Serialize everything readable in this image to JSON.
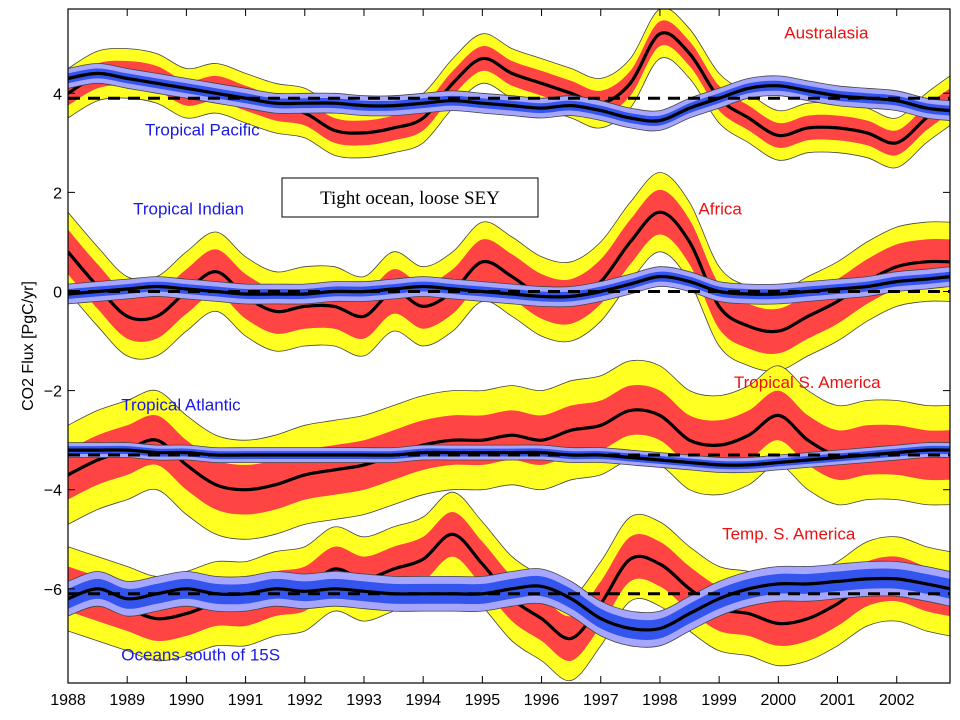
{
  "chart_data": {
    "type": "line",
    "title": "",
    "xlabel": "",
    "ylabel": "CO2 Flux [PgC/yr]",
    "xlim": [
      1988,
      2002.9
    ],
    "ylim": [
      -7.9,
      5.7
    ],
    "grid": false,
    "x_ticks": [
      "1988",
      "1989",
      "1990",
      "1991",
      "1992",
      "1993",
      "1994",
      "1995",
      "1996",
      "1997",
      "1998",
      "1999",
      "2000",
      "2001",
      "2002"
    ],
    "y_ticks": [
      "−6",
      "−4",
      "−2",
      "0",
      "2",
      "4"
    ],
    "colors": {
      "land_inner_band": "#ff4444",
      "land_outer_band": "#ffff22",
      "ocean_inner_band": "#3355ee",
      "ocean_outer_band": "#a6a6ff",
      "mean_line": "#000000",
      "land_label": "#ee1111",
      "ocean_label": "#1a1ae6"
    },
    "annotation": "Tight ocean, loose SEY",
    "series": [
      {
        "name": "Australasia",
        "group": "land",
        "x": [
          1988,
          1988.5,
          1989,
          1989.5,
          1990,
          1990.5,
          1991,
          1991.5,
          1992,
          1992.5,
          1993,
          1993.5,
          1994,
          1994.5,
          1995,
          1995.5,
          1996,
          1996.5,
          1997,
          1997.5,
          1998,
          1998.5,
          1999,
          1999.5,
          2000,
          2000.5,
          2001,
          2001.5,
          2002,
          2002.5,
          2002.9
        ],
        "values": [
          4.0,
          4.35,
          4.4,
          4.3,
          4.0,
          4.1,
          3.9,
          3.7,
          3.6,
          3.25,
          3.2,
          3.3,
          3.5,
          4.2,
          4.7,
          4.4,
          4.2,
          4.0,
          3.8,
          4.2,
          5.2,
          4.8,
          3.9,
          3.5,
          3.15,
          3.3,
          3.3,
          3.2,
          3.0,
          3.5,
          3.85
        ],
        "band_inner": 0.25,
        "band_outer": 0.5
      },
      {
        "name": "Tropical Pacific",
        "group": "ocean",
        "x": [
          1988,
          1988.5,
          1989,
          1989.5,
          1990,
          1990.5,
          1991,
          1991.5,
          1992,
          1992.5,
          1993,
          1993.5,
          1994,
          1994.5,
          1995,
          1995.5,
          1996,
          1996.5,
          1997,
          1997.5,
          1998,
          1998.5,
          1999,
          1999.5,
          2000,
          2000.5,
          2001,
          2001.5,
          2002,
          2002.5,
          2002.9
        ],
        "values": [
          4.3,
          4.4,
          4.3,
          4.2,
          4.1,
          4.0,
          3.9,
          3.8,
          3.8,
          3.8,
          3.75,
          3.75,
          3.8,
          3.85,
          3.8,
          3.75,
          3.7,
          3.75,
          3.65,
          3.5,
          3.45,
          3.7,
          3.9,
          4.1,
          4.15,
          4.05,
          3.95,
          3.9,
          3.85,
          3.7,
          3.65
        ],
        "band_inner": 0.1,
        "band_outer": 0.2,
        "mean": 3.9
      },
      {
        "name": "Africa",
        "group": "land",
        "x": [
          1988,
          1988.5,
          1989,
          1989.5,
          1990,
          1990.5,
          1991,
          1991.5,
          1992,
          1992.5,
          1993,
          1993.5,
          1994,
          1994.5,
          1995,
          1995.5,
          1996,
          1996.5,
          1997,
          1997.5,
          1998,
          1998.5,
          1999,
          1999.5,
          2000,
          2000.5,
          2001,
          2001.5,
          2002,
          2002.5,
          2002.9
        ],
        "values": [
          0.8,
          0.1,
          -0.5,
          -0.5,
          0.0,
          0.4,
          -0.1,
          -0.4,
          -0.3,
          -0.3,
          -0.5,
          0.0,
          -0.3,
          0.0,
          0.6,
          0.3,
          -0.1,
          -0.2,
          0.2,
          1.0,
          1.6,
          1.0,
          -0.3,
          -0.7,
          -0.8,
          -0.5,
          -0.2,
          0.2,
          0.5,
          0.6,
          0.6
        ],
        "band_inner": 0.45,
        "band_outer": 0.8
      },
      {
        "name": "Tropical Indian",
        "group": "ocean",
        "x": [
          1988,
          1988.5,
          1989,
          1989.5,
          1990,
          1990.5,
          1991,
          1991.5,
          1992,
          1992.5,
          1993,
          1993.5,
          1994,
          1994.5,
          1995,
          1995.5,
          1996,
          1996.5,
          1997,
          1997.5,
          1998,
          1998.5,
          1999,
          1999.5,
          2000,
          2000.5,
          2001,
          2001.5,
          2002,
          2002.5,
          2002.9
        ],
        "values": [
          -0.05,
          0.0,
          0.05,
          0.1,
          0.05,
          0.0,
          -0.05,
          -0.05,
          -0.05,
          0.0,
          0.0,
          0.05,
          0.1,
          0.05,
          0.0,
          -0.05,
          -0.1,
          -0.1,
          0.0,
          0.15,
          0.3,
          0.2,
          0.0,
          -0.05,
          -0.05,
          0.0,
          0.05,
          0.1,
          0.2,
          0.25,
          0.3
        ],
        "band_inner": 0.1,
        "band_outer": 0.2,
        "mean": 0.0
      },
      {
        "name": "Tropical S. America",
        "group": "land",
        "x": [
          1988,
          1988.5,
          1989,
          1989.5,
          1990,
          1990.5,
          1991,
          1991.5,
          1992,
          1992.5,
          1993,
          1993.5,
          1994,
          1994.5,
          1995,
          1995.5,
          1996,
          1996.5,
          1997,
          1997.5,
          1998,
          1998.5,
          1999,
          1999.5,
          2000,
          2000.5,
          2001,
          2001.5,
          2002,
          2002.5,
          2002.9
        ],
        "values": [
          -3.7,
          -3.4,
          -3.2,
          -3.0,
          -3.5,
          -3.9,
          -4.0,
          -3.9,
          -3.7,
          -3.6,
          -3.5,
          -3.3,
          -3.1,
          -3.0,
          -3.0,
          -2.9,
          -3.0,
          -2.8,
          -2.7,
          -2.4,
          -2.5,
          -3.0,
          -3.1,
          -2.9,
          -2.5,
          -3.0,
          -3.3,
          -3.2,
          -3.2,
          -3.3,
          -3.3
        ],
        "band_inner": 0.5,
        "band_outer": 1.0
      },
      {
        "name": "Tropical Atlantic",
        "group": "ocean",
        "x": [
          1988,
          1988.5,
          1989,
          1989.5,
          1990,
          1990.5,
          1991,
          1991.5,
          1992,
          1992.5,
          1993,
          1993.5,
          1994,
          1994.5,
          1995,
          1995.5,
          1996,
          1996.5,
          1997,
          1997.5,
          1998,
          1998.5,
          1999,
          1999.5,
          2000,
          2000.5,
          2001,
          2001.5,
          2002,
          2002.5,
          2002.9
        ],
        "values": [
          -3.2,
          -3.2,
          -3.2,
          -3.25,
          -3.25,
          -3.3,
          -3.3,
          -3.3,
          -3.3,
          -3.3,
          -3.3,
          -3.3,
          -3.25,
          -3.25,
          -3.25,
          -3.25,
          -3.25,
          -3.3,
          -3.3,
          -3.35,
          -3.4,
          -3.45,
          -3.5,
          -3.5,
          -3.45,
          -3.4,
          -3.35,
          -3.3,
          -3.25,
          -3.2,
          -3.2
        ],
        "band_inner": 0.08,
        "band_outer": 0.15,
        "mean": -3.3
      },
      {
        "name": "Temp. S. America",
        "group": "land",
        "x": [
          1988,
          1988.5,
          1989,
          1989.5,
          1990,
          1990.5,
          1991,
          1991.5,
          1992,
          1992.5,
          1993,
          1993.5,
          1994,
          1994.5,
          1995,
          1995.5,
          1996,
          1996.5,
          1997,
          1997.5,
          1998,
          1998.5,
          1999,
          1999.5,
          2000,
          2000.5,
          2001,
          2001.5,
          2002,
          2002.5,
          2002.9
        ],
        "values": [
          -6.0,
          -6.2,
          -6.4,
          -6.6,
          -6.5,
          -6.3,
          -6.3,
          -6.1,
          -6.0,
          -5.6,
          -5.8,
          -5.6,
          -5.4,
          -4.9,
          -5.5,
          -6.2,
          -6.6,
          -7.0,
          -6.3,
          -5.4,
          -5.5,
          -6.0,
          -6.4,
          -6.5,
          -6.7,
          -6.6,
          -6.3,
          -5.9,
          -5.8,
          -6.0,
          -6.1
        ],
        "band_inner": 0.45,
        "band_outer": 0.85
      },
      {
        "name": "Oceans south of 15S",
        "group": "ocean",
        "x": [
          1988,
          1988.5,
          1989,
          1989.5,
          1990,
          1990.5,
          1991,
          1991.5,
          1992,
          1992.5,
          1993,
          1993.5,
          1994,
          1994.5,
          1995,
          1995.5,
          1996,
          1996.5,
          1997,
          1997.5,
          1998,
          1998.5,
          1999,
          1999.5,
          2000,
          2000.5,
          2001,
          2001.5,
          2002,
          2002.5,
          2002.9
        ],
        "values": [
          -6.2,
          -6.0,
          -6.2,
          -6.1,
          -6.0,
          -6.1,
          -6.1,
          -6.0,
          -6.05,
          -6.0,
          -6.05,
          -6.1,
          -6.1,
          -6.1,
          -6.1,
          -6.0,
          -5.95,
          -6.2,
          -6.6,
          -6.8,
          -6.8,
          -6.5,
          -6.2,
          -6.0,
          -5.9,
          -5.9,
          -5.85,
          -5.8,
          -5.8,
          -5.9,
          -6.0
        ],
        "band_inner": 0.2,
        "band_outer": 0.35,
        "mean": -6.1
      }
    ]
  }
}
